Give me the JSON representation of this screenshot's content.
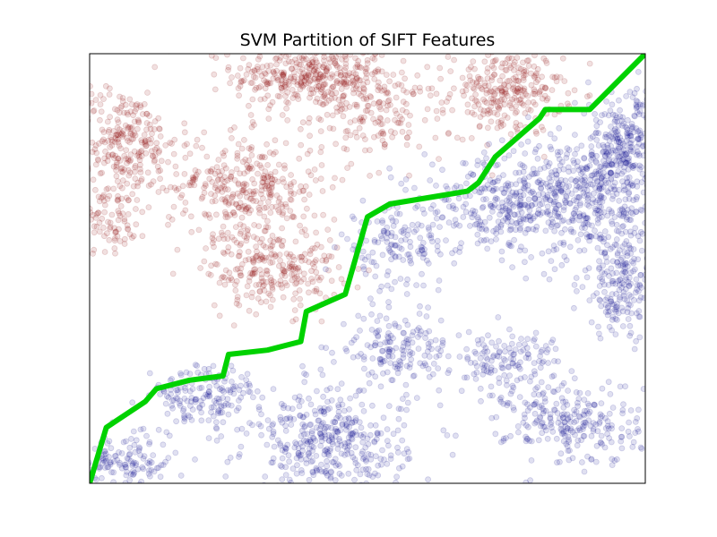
{
  "chart_data": {
    "type": "scatter",
    "title": "SVM Partition of SIFT Features",
    "xlabel": "",
    "ylabel": "",
    "axes_ticks": "none",
    "grid": false,
    "legend": "none",
    "xlim": [
      0,
      100
    ],
    "ylim": [
      0,
      100
    ],
    "colors": {
      "class_a": "#8b0000",
      "class_b": "#00008b",
      "boundary": "#00d200",
      "axes": "#000000"
    },
    "point_alpha": 0.12,
    "clusters": [
      {
        "class": "class_a",
        "center": [
          40,
          95
        ],
        "spread": [
          7,
          4
        ],
        "count": 380
      },
      {
        "class": "class_a",
        "center": [
          52,
          86
        ],
        "spread": [
          6,
          5
        ],
        "count": 160
      },
      {
        "class": "class_a",
        "center": [
          75,
          91
        ],
        "spread": [
          5,
          5
        ],
        "count": 280
      },
      {
        "class": "class_a",
        "center": [
          6,
          80
        ],
        "spread": [
          5,
          6
        ],
        "count": 260
      },
      {
        "class": "class_a",
        "center": [
          3,
          62
        ],
        "spread": [
          4,
          4
        ],
        "count": 110
      },
      {
        "class": "class_a",
        "center": [
          28,
          69
        ],
        "spread": [
          7,
          6
        ],
        "count": 340
      },
      {
        "class": "class_a",
        "center": [
          33,
          50
        ],
        "spread": [
          6,
          5
        ],
        "count": 260
      },
      {
        "class": "class_b",
        "center": [
          88,
          66
        ],
        "spread": [
          8,
          7
        ],
        "count": 520
      },
      {
        "class": "class_b",
        "center": [
          96,
          79
        ],
        "spread": [
          4,
          6
        ],
        "count": 260
      },
      {
        "class": "class_b",
        "center": [
          96,
          46
        ],
        "spread": [
          4,
          6
        ],
        "count": 200
      },
      {
        "class": "class_b",
        "center": [
          55,
          55
        ],
        "spread": [
          5,
          5
        ],
        "count": 150
      },
      {
        "class": "class_b",
        "center": [
          72,
          65
        ],
        "spread": [
          6,
          5
        ],
        "count": 190
      },
      {
        "class": "class_b",
        "center": [
          55,
          31
        ],
        "spread": [
          5,
          4
        ],
        "count": 160
      },
      {
        "class": "class_b",
        "center": [
          75,
          28
        ],
        "spread": [
          5,
          4
        ],
        "count": 150
      },
      {
        "class": "class_b",
        "center": [
          87,
          14
        ],
        "spread": [
          6,
          5
        ],
        "count": 240
      },
      {
        "class": "class_b",
        "center": [
          43,
          9
        ],
        "spread": [
          7,
          6
        ],
        "count": 400
      },
      {
        "class": "class_b",
        "center": [
          21,
          20
        ],
        "spread": [
          5,
          4
        ],
        "count": 170
      },
      {
        "class": "class_b",
        "center": [
          5,
          5
        ],
        "spread": [
          6,
          3
        ],
        "count": 160
      }
    ],
    "boundary": {
      "x": [
        0,
        3,
        10,
        12,
        18,
        24,
        25,
        32,
        38,
        39,
        46,
        50,
        54,
        68,
        70,
        73,
        81,
        82,
        90,
        100
      ],
      "y": [
        0,
        13,
        19,
        22,
        24,
        25,
        30,
        31,
        33,
        40,
        44,
        62,
        65,
        68,
        70,
        76,
        85,
        87,
        87,
        100
      ]
    }
  }
}
